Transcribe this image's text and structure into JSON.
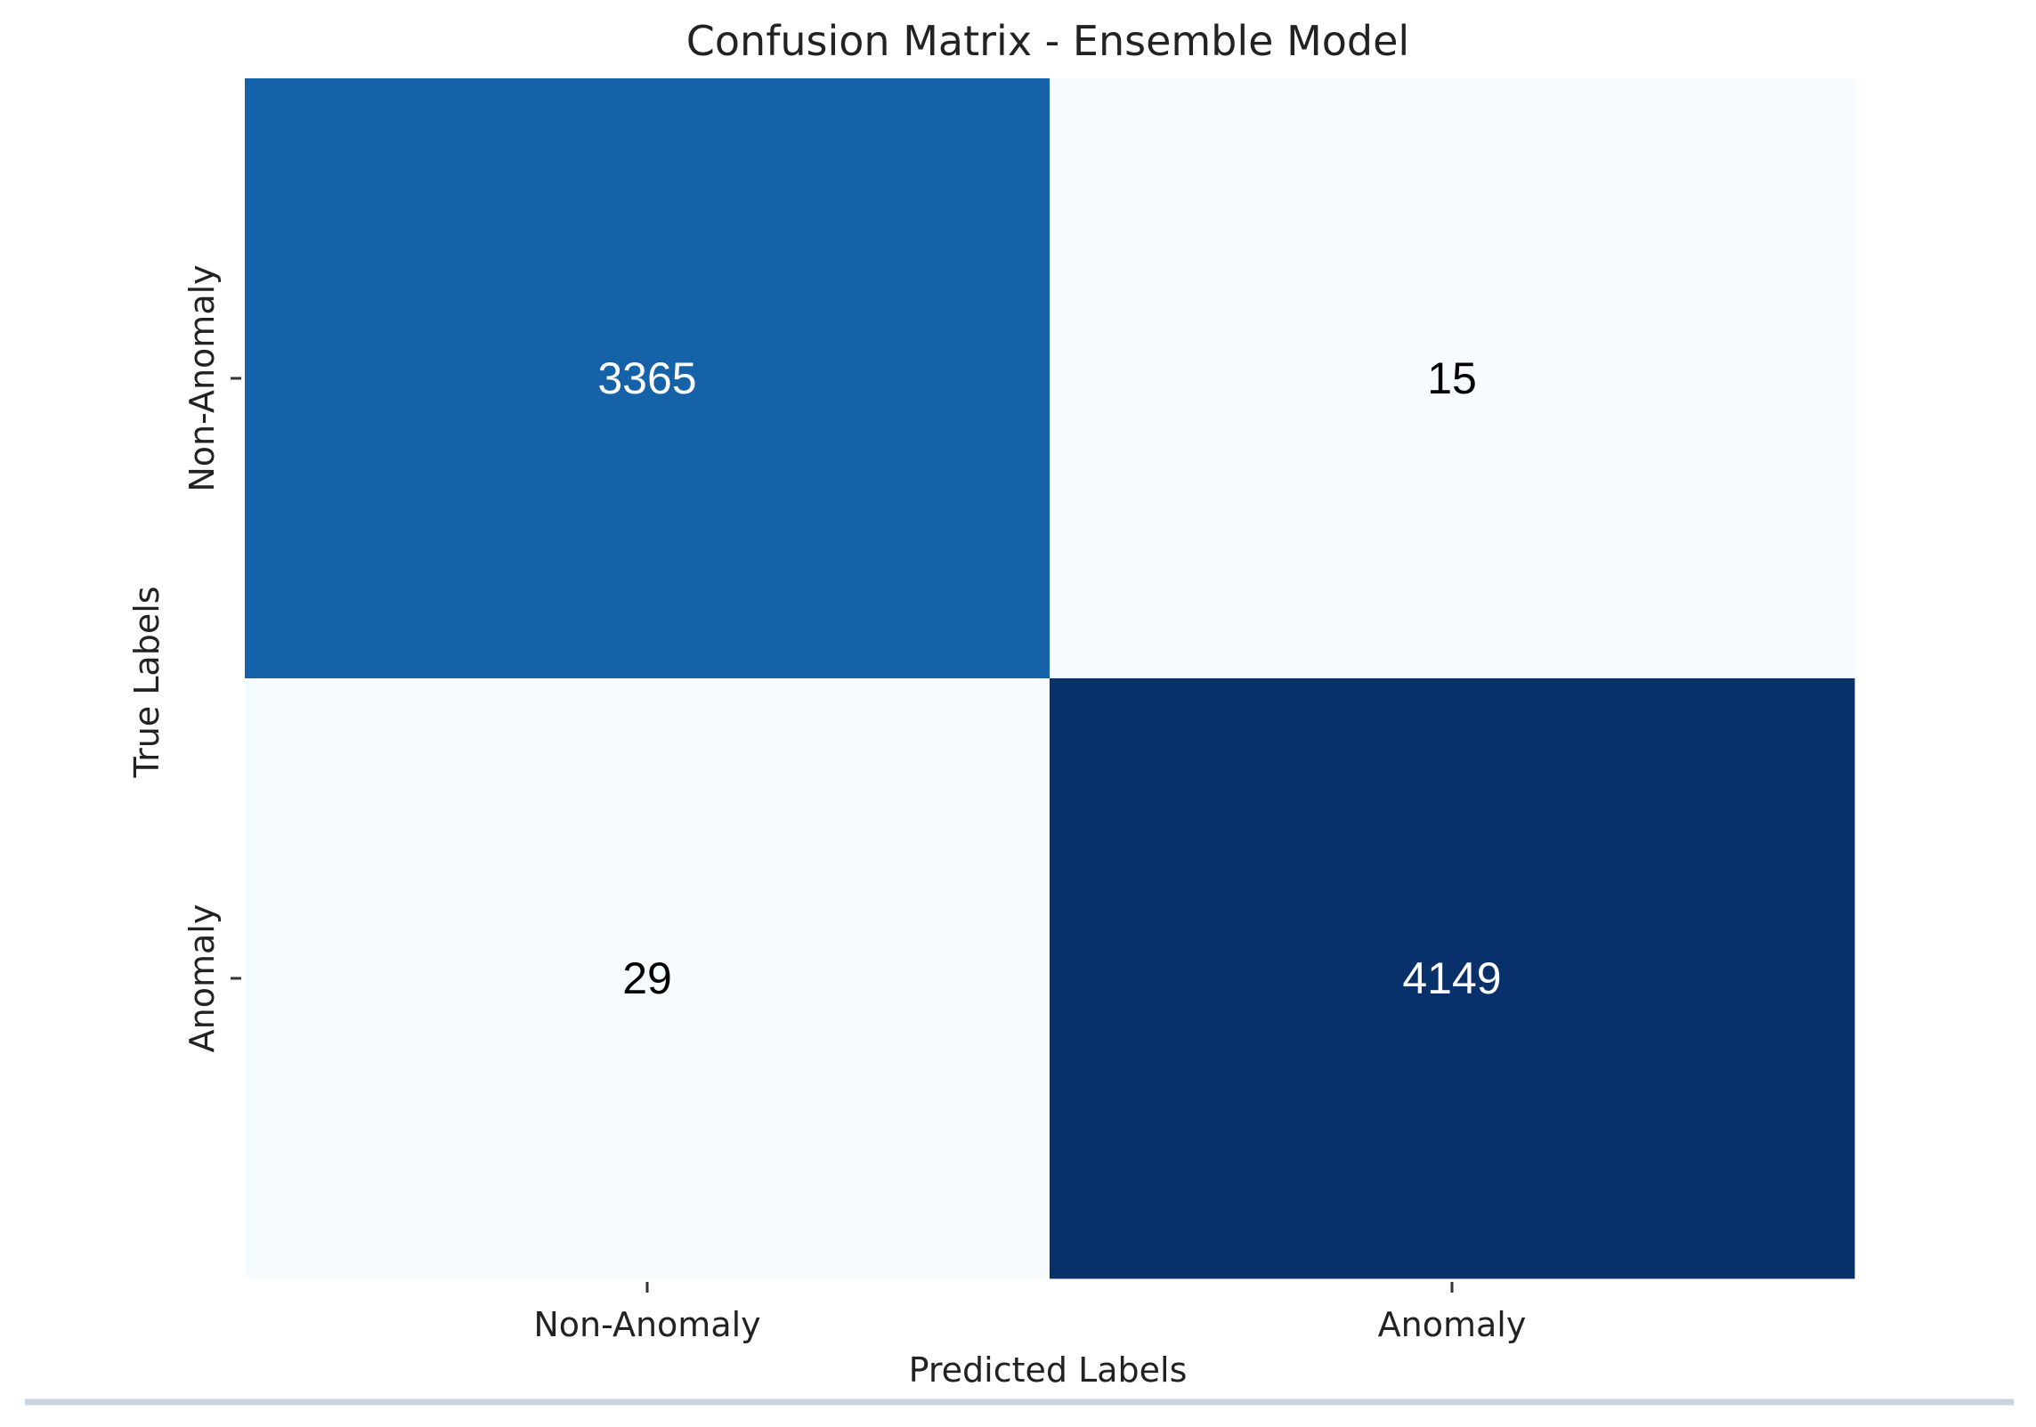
{
  "chart_data": {
    "type": "heatmap",
    "title": "Confusion Matrix - Ensemble Model",
    "xlabel": "Predicted Labels",
    "ylabel": "True Labels",
    "x_categories": [
      "Non-Anomaly",
      "Anomaly"
    ],
    "y_categories": [
      "Non-Anomaly",
      "Anomaly"
    ],
    "values": [
      [
        3365,
        15
      ],
      [
        29,
        4149
      ]
    ],
    "colormap": "Blues",
    "colorbar": false,
    "grid": false
  }
}
